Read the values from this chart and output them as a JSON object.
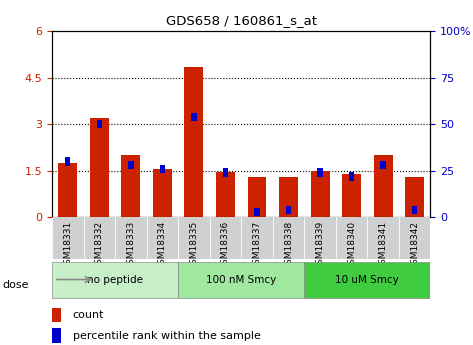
{
  "title": "GDS658 / 160861_s_at",
  "categories": [
    "GSM18331",
    "GSM18332",
    "GSM18333",
    "GSM18334",
    "GSM18335",
    "GSM18336",
    "GSM18337",
    "GSM18338",
    "GSM18339",
    "GSM18340",
    "GSM18341",
    "GSM18342"
  ],
  "red_values": [
    1.75,
    3.2,
    2.0,
    1.55,
    4.85,
    1.45,
    1.3,
    1.3,
    1.5,
    1.4,
    2.0,
    1.3
  ],
  "blue_pct": [
    30,
    50,
    28,
    26,
    54,
    24,
    3,
    4,
    24,
    22,
    28,
    4
  ],
  "ylim_left": [
    0,
    6
  ],
  "ylim_right": [
    0,
    100
  ],
  "yticks_left": [
    0,
    1.5,
    3.0,
    4.5,
    6.0
  ],
  "yticks_right": [
    0,
    25,
    50,
    75,
    100
  ],
  "ytick_labels_left": [
    "0",
    "1.5",
    "3",
    "4.5",
    "6"
  ],
  "ytick_labels_right": [
    "0",
    "25",
    "50",
    "75",
    "100%"
  ],
  "groups": [
    {
      "label": "no peptide",
      "start": 0,
      "end": 3,
      "color": "#c8f0c8"
    },
    {
      "label": "100 nM Smcy",
      "start": 4,
      "end": 7,
      "color": "#a0e8a0"
    },
    {
      "label": "10 uM Smcy",
      "start": 8,
      "end": 11,
      "color": "#40cc40"
    }
  ],
  "dose_label": "dose",
  "bar_color_red": "#cc2200",
  "bar_color_blue": "#0000cc",
  "bar_width": 0.6,
  "tick_bg_color": "#d0d0d0",
  "legend_count": "count",
  "legend_pct": "percentile rank within the sample",
  "grid_color": "black",
  "grid_style": "dotted"
}
